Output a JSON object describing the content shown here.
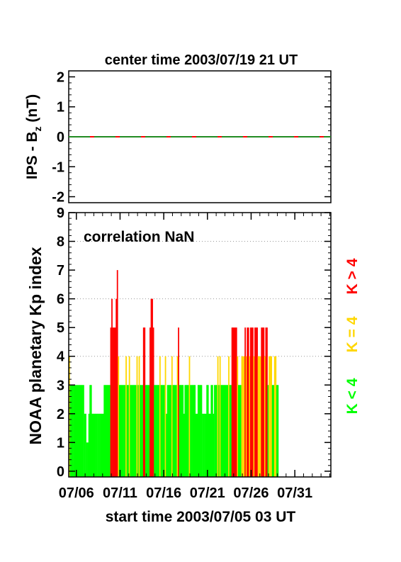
{
  "chart_data": [
    {
      "type": "line",
      "title": "center time 2003/07/19 21 UT",
      "ylabel_main": "IPS - B",
      "ylabel_sub": "z",
      "ylabel_unit": " (nT)",
      "ylim": [
        -2.2,
        2.2
      ],
      "yticks": [
        -2,
        -1,
        0,
        1,
        2
      ],
      "ytick_labels": [
        "-2",
        "-1",
        "0",
        "1",
        "2"
      ],
      "grid": false,
      "series": [
        {
          "color": "#ff0000",
          "style": "solid",
          "x": [
            0,
            30
          ],
          "y": [
            0,
            0
          ]
        },
        {
          "color": "#228b22",
          "style": "dashed",
          "x": [
            0,
            30
          ],
          "y": [
            0,
            0
          ]
        }
      ]
    },
    {
      "type": "bar",
      "annotation": "correlation NaN",
      "ylabel": "NOAA planetary Kp index",
      "xlabel": "start time 2003/07/05 03 UT",
      "ylim": [
        -0.2,
        9
      ],
      "yticks": [
        0,
        1,
        2,
        3,
        4,
        5,
        6,
        7,
        8,
        9
      ],
      "ytick_labels": [
        "0",
        "1",
        "2",
        "3",
        "4",
        "5",
        "6",
        "7",
        "8",
        "9"
      ],
      "grid": "horizontal dotted at 4, 6, 8",
      "xlim_days": [
        0,
        30
      ],
      "xticks_days": [
        0.875,
        5.875,
        10.875,
        15.875,
        20.875,
        25.875
      ],
      "xtick_labels": [
        "07/06",
        "07/11",
        "07/16",
        "07/21",
        "07/26",
        "07/31"
      ],
      "bin_hours": 3,
      "legend": [
        {
          "label": "K > 4",
          "color": "#ff0000"
        },
        {
          "label": "K = 4",
          "color": "#ffd700"
        },
        {
          "label": "K < 4",
          "color": "#00ff00"
        }
      ],
      "color_rule": "red if Kp > 4, yellow if Kp = 4, green if Kp < 4",
      "kp_values": [
        4,
        3,
        3,
        3,
        3,
        3,
        3,
        3,
        3,
        3,
        3,
        3,
        3,
        3,
        2,
        2,
        1,
        1,
        2,
        3,
        3,
        2,
        2,
        2,
        2,
        2,
        2,
        2,
        2,
        2,
        2,
        2,
        3,
        3,
        3,
        3,
        3,
        3,
        5,
        6,
        5,
        5,
        5,
        6,
        7,
        4,
        3,
        3,
        3,
        3,
        3,
        3,
        4,
        3,
        3,
        4,
        3,
        3,
        3,
        3,
        3,
        3,
        4,
        3,
        4,
        3,
        3,
        3,
        5,
        5,
        3,
        3,
        3,
        3,
        5,
        6,
        6,
        5,
        3,
        3,
        3,
        3,
        3,
        4,
        3,
        3,
        3,
        3,
        4,
        2,
        3,
        3,
        3,
        3,
        4,
        3,
        3,
        3,
        3,
        4,
        5,
        3,
        3,
        3,
        3,
        2,
        3,
        3,
        3,
        3,
        4,
        3,
        3,
        3,
        3,
        3,
        2,
        2,
        3,
        3,
        3,
        3,
        2,
        2,
        2,
        2,
        3,
        3,
        2,
        2,
        3,
        3,
        2,
        3,
        3,
        3,
        4,
        3,
        4,
        3,
        3,
        3,
        3,
        3,
        3,
        3,
        4,
        3,
        3,
        5,
        5,
        5,
        5,
        5,
        4,
        3,
        3,
        3,
        4,
        4,
        4,
        5,
        4,
        5,
        5,
        4,
        5,
        5,
        5,
        4,
        5,
        5,
        5,
        4,
        4,
        4,
        5,
        5,
        5,
        4,
        5,
        5,
        3,
        4,
        4,
        4,
        3,
        3,
        4,
        4,
        3,
        3
      ]
    }
  ]
}
